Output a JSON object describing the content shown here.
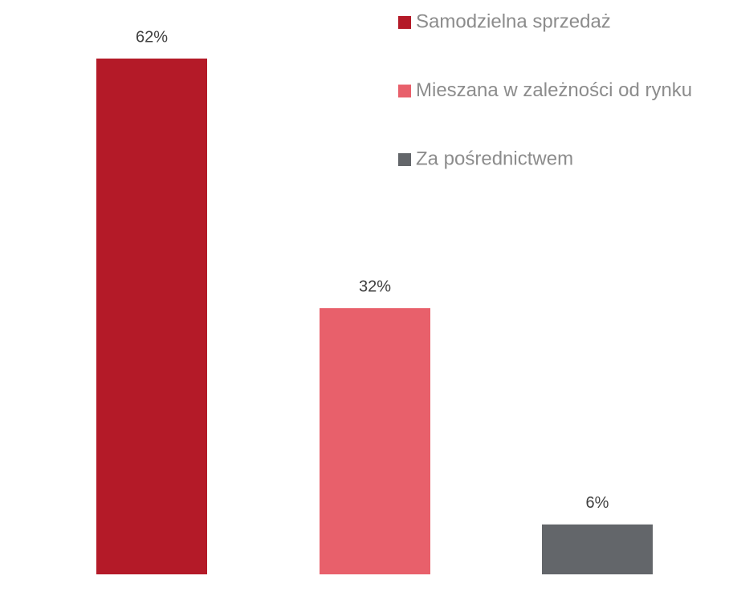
{
  "chart_data": {
    "type": "bar",
    "categories": [
      null
    ],
    "series": [
      {
        "name": "Samodzielna sprzedaż",
        "color": "#b41a28",
        "values": [
          62
        ],
        "value_labels": [
          "62%"
        ]
      },
      {
        "name": "Mieszana w zależności od rynku",
        "color": "#e8606b",
        "values": [
          32
        ],
        "value_labels": [
          "32%"
        ]
      },
      {
        "name": "Za pośrednictwem",
        "color": "#63666a",
        "values": [
          6
        ],
        "value_labels": [
          "6%"
        ]
      }
    ],
    "legend": "top-right"
  }
}
